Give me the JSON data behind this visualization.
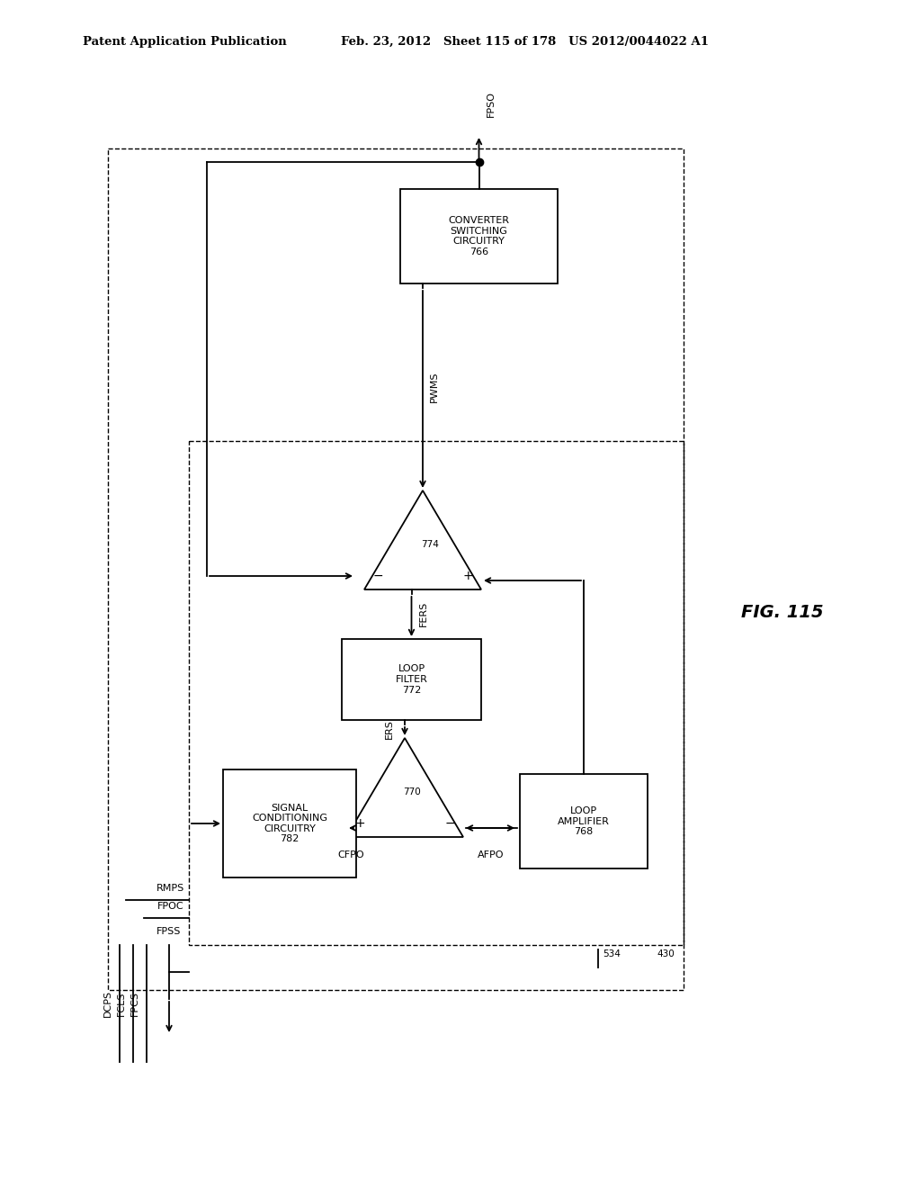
{
  "title_left": "Patent Application Publication",
  "title_right": "Feb. 23, 2012   Sheet 115 of 178   US 2012/0044022 A1",
  "fig_label": "FIG. 115",
  "background_color": "#ffffff",
  "line_color": "#000000"
}
